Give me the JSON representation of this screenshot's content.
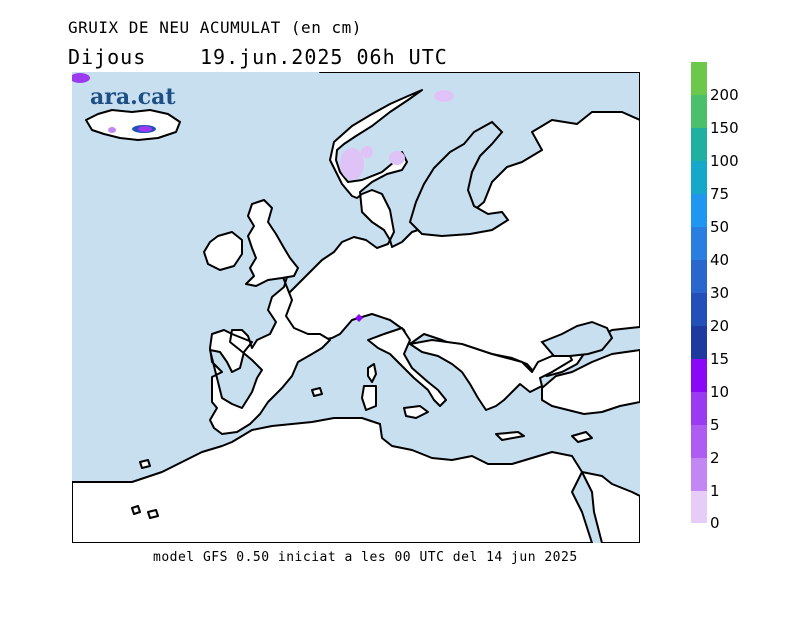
{
  "header": {
    "title": "GRUIX DE NEU ACUMULAT (en cm)",
    "day": "Dijous",
    "datetime": "19.jun.2025 06h UTC"
  },
  "brand": "ara.cat",
  "footer": "model GFS 0.50 iniciat a les 00 UTC del 14 jun 2025",
  "colors": {
    "sea": "#c8dff0",
    "land": "#ffffff",
    "coast": "#000000"
  },
  "legend": {
    "levels": [
      {
        "label": "0",
        "color": "#e6ccf7"
      },
      {
        "label": "1",
        "color": "#d5a7f5"
      },
      {
        "label": "2",
        "color": "#c387f4"
      },
      {
        "label": "5",
        "color": "#ae5cf1"
      },
      {
        "label": "10",
        "color": "#9b3af0"
      },
      {
        "label": "15",
        "color": "#8a08f7"
      },
      {
        "label": "20",
        "color": "#1e3a9e"
      },
      {
        "label": "30",
        "color": "#2250b8"
      },
      {
        "label": "40",
        "color": "#2a66cc"
      },
      {
        "label": "50",
        "color": "#2a7ee0"
      },
      {
        "label": "75",
        "color": "#1f97f0"
      },
      {
        "label": "100",
        "color": "#16a8c8"
      },
      {
        "label": "150",
        "color": "#20b0a0"
      },
      {
        "label": "200",
        "color": "#4bbf6a"
      },
      {
        "label": "",
        "color": "#6cc84a"
      }
    ]
  },
  "snow_areas": [
    {
      "region": "Iceland",
      "level": "10"
    },
    {
      "region": "Iceland",
      "level": "5"
    },
    {
      "region": "Norway",
      "level": "1"
    },
    {
      "region": "Sweden north",
      "level": "1"
    },
    {
      "region": "Alps",
      "level": "15"
    }
  ]
}
